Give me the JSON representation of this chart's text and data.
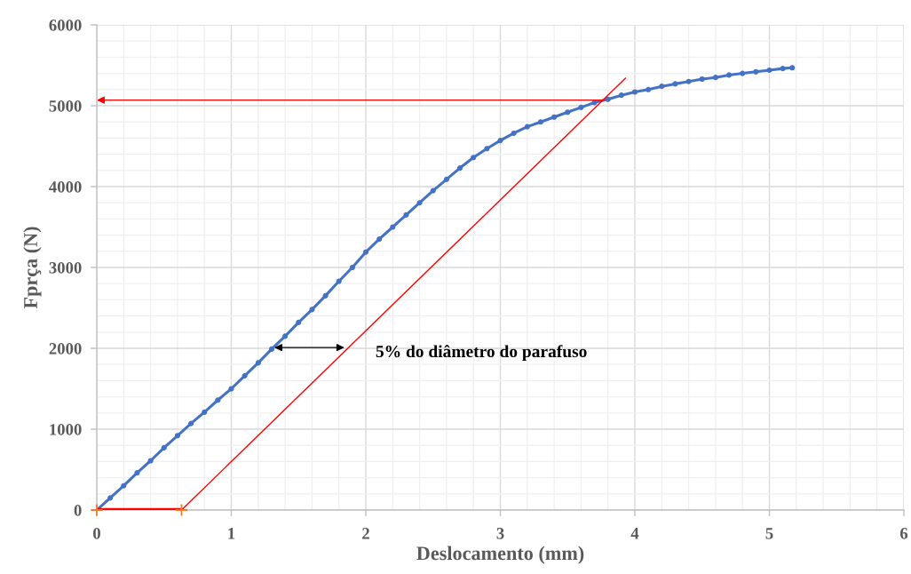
{
  "chart_data": {
    "type": "line",
    "xlabel": "Deslocamento (mm)",
    "ylabel": "Fprça (N)",
    "xlim": [
      0,
      6
    ],
    "ylim": [
      0,
      6000
    ],
    "xticks": [
      0,
      1,
      2,
      3,
      4,
      5,
      6
    ],
    "yticks": [
      0,
      1000,
      2000,
      3000,
      4000,
      5000,
      6000
    ],
    "grid": true,
    "annotations": [
      "5% do diâmetro do parafuso"
    ],
    "series": [
      {
        "color": "#4472c4",
        "marker": "circle",
        "x": [
          0,
          0.1,
          0.2,
          0.3,
          0.4,
          0.5,
          0.6,
          0.7,
          0.8,
          0.9,
          1.0,
          1.1,
          1.2,
          1.3,
          1.4,
          1.5,
          1.6,
          1.7,
          1.8,
          1.9,
          2.0,
          2.1,
          2.2,
          2.3,
          2.4,
          2.5,
          2.6,
          2.7,
          2.8,
          2.9,
          3.0,
          3.1,
          3.2,
          3.3,
          3.4,
          3.5,
          3.6,
          3.7,
          3.8,
          3.9,
          4.0,
          4.1,
          4.2,
          4.3,
          4.4,
          4.5,
          4.6,
          4.7,
          4.8,
          4.9,
          5.0,
          5.1,
          5.17
        ],
        "values": [
          0,
          150,
          300,
          460,
          610,
          770,
          920,
          1070,
          1210,
          1360,
          1500,
          1660,
          1820,
          1990,
          2150,
          2320,
          2480,
          2650,
          2830,
          3000,
          3190,
          3350,
          3500,
          3650,
          3800,
          3950,
          4090,
          4230,
          4360,
          4470,
          4570,
          4660,
          4740,
          4800,
          4860,
          4920,
          4980,
          5040,
          5080,
          5130,
          5170,
          5200,
          5240,
          5270,
          5300,
          5330,
          5350,
          5380,
          5400,
          5420,
          5440,
          5460,
          5470
        ]
      },
      {
        "color": "#ff0000",
        "marker": "none",
        "x": [
          0.63,
          3.93
        ],
        "values": [
          0,
          5340
        ]
      },
      {
        "color": "#ff0000",
        "marker": "none",
        "x": [
          0,
          0.63
        ],
        "values": [
          0,
          0
        ]
      },
      {
        "type": "scatter",
        "color": "#ed7d31",
        "marker": "cross",
        "x": [
          0,
          0.63
        ],
        "values": [
          0,
          0
        ]
      }
    ]
  }
}
